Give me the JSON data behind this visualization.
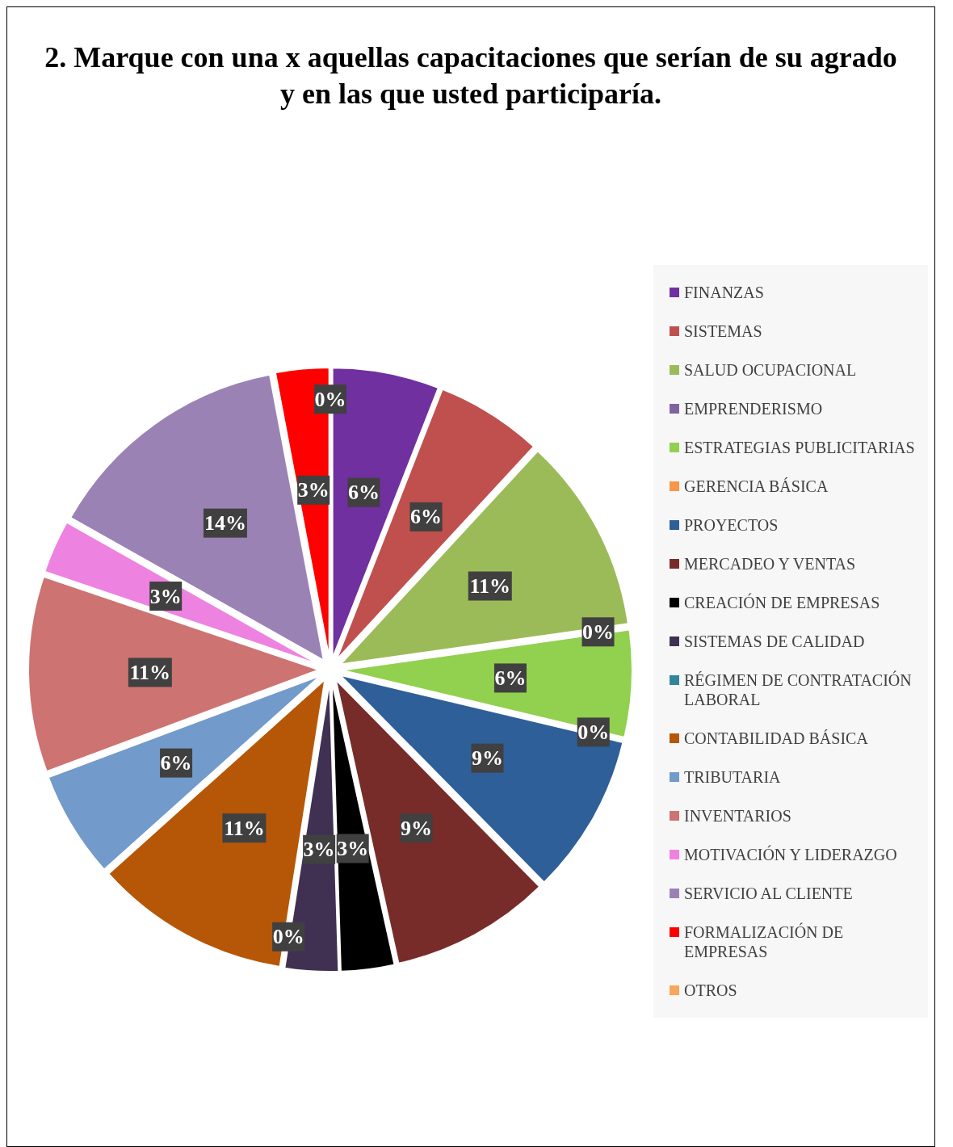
{
  "chart_data": {
    "type": "pie",
    "title": "2. Marque con una x aquellas capacitaciones que serían de su agrado y en las que usted participaría.",
    "categories": [
      "FINANZAS",
      "SISTEMAS",
      "SALUD OCUPACIONAL",
      "EMPRENDERISMO",
      "ESTRATEGIAS PUBLICITARIAS",
      "GERENCIA BÁSICA",
      "PROYECTOS",
      "MERCADEO Y VENTAS",
      "CREACIÓN DE EMPRESAS",
      "SISTEMAS DE CALIDAD",
      "RÉGIMEN DE CONTRATACIÓN LABORAL",
      "CONTABILIDAD BÁSICA",
      "TRIBUTARIA",
      "INVENTARIOS",
      "MOTIVACIÓN Y LIDERAZGO",
      "SERVICIO AL CLIENTE",
      "FORMALIZACIÓN DE EMPRESAS",
      "OTROS"
    ],
    "values": [
      6,
      6,
      11,
      0,
      6,
      0,
      9,
      9,
      3,
      3,
      0,
      11,
      6,
      11,
      3,
      14,
      3,
      0
    ],
    "value_labels": [
      "6%",
      "6%",
      "11%",
      "0%",
      "6%",
      "0%",
      "9%",
      "9%",
      "3%",
      "3%",
      "0%",
      "11%",
      "6%",
      "11%",
      "3%",
      "14%",
      "3%",
      "0%"
    ],
    "colors": [
      "#7030a0",
      "#c0504d",
      "#9bbb59",
      "#8064a2",
      "#92d050",
      "#f79646",
      "#2f5f98",
      "#772c2a",
      "#000000",
      "#403152",
      "#31859c",
      "#b65708",
      "#729aca",
      "#cd7371",
      "#ee82e0",
      "#9a83b4",
      "#ff0000",
      "#f9a55a"
    ],
    "legend": "right"
  }
}
